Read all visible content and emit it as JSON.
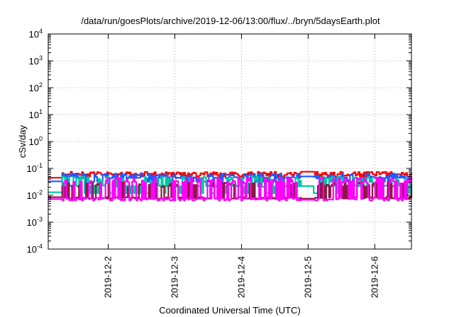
{
  "chart_data": {
    "type": "line",
    "title": "/data/run/goesPlots/archive/2019-12-06/13:00/flux/../bryn/5daysEarth.plot",
    "xlabel": "Coordinated Universal Time (UTC)",
    "ylabel": "cSv/day",
    "yscale": "log",
    "ylim": [
      0.0001,
      10000
    ],
    "y_ticks": [
      {
        "value": 0.0001,
        "base": "10",
        "exp": "-4"
      },
      {
        "value": 0.001,
        "base": "10",
        "exp": "-3"
      },
      {
        "value": 0.01,
        "base": "10",
        "exp": "-2"
      },
      {
        "value": 0.1,
        "base": "10",
        "exp": "-1"
      },
      {
        "value": 1,
        "base": "10",
        "exp": "0"
      },
      {
        "value": 10,
        "base": "10",
        "exp": "1"
      },
      {
        "value": 100,
        "base": "10",
        "exp": "2"
      },
      {
        "value": 1000,
        "base": "10",
        "exp": "3"
      },
      {
        "value": 10000,
        "base": "10",
        "exp": "4"
      }
    ],
    "xlim": [
      1.1,
      6.55
    ],
    "x_ticks": [
      {
        "value": 2,
        "label": "2019-12-2"
      },
      {
        "value": 3,
        "label": "2019-12-3"
      },
      {
        "value": 4,
        "label": "2019-12-4"
      },
      {
        "value": 5,
        "label": "2019-12-5"
      },
      {
        "value": 6,
        "label": "2019-12-6"
      }
    ],
    "grid": true,
    "series": [
      {
        "color": "#ff0000",
        "base": 0.058,
        "low": 0.05,
        "high": 0.075,
        "seed": 11,
        "steps": [
          [
            1.1,
            1.3,
            0.045
          ],
          [
            4.88,
            5.08,
            0.075
          ]
        ]
      },
      {
        "color": "#1f5cff",
        "base": 0.045,
        "low": 0.032,
        "high": 0.065,
        "seed": 23,
        "steps": [
          [
            1.1,
            1.3,
            0.033
          ],
          [
            1.65,
            1.75,
            0.022
          ],
          [
            4.88,
            5.08,
            0.05
          ]
        ]
      },
      {
        "color": "#00c8a0",
        "base": 0.022,
        "low": 0.012,
        "high": 0.05,
        "seed": 37,
        "steps": [
          [
            1.1,
            1.3,
            0.013
          ],
          [
            4.88,
            5.08,
            0.022
          ]
        ]
      },
      {
        "color": "#8b1a3a",
        "base": 0.008,
        "low": 0.0075,
        "high": 0.03,
        "seed": 41,
        "steps": [
          [
            1.1,
            1.3,
            0.0085
          ],
          [
            4.88,
            5.08,
            0.0075
          ]
        ]
      },
      {
        "color": "#ff00ff",
        "base": 0.0075,
        "low": 0.0065,
        "high": 0.045,
        "seed": 53,
        "steps": [
          [
            1.1,
            1.3,
            0.0072
          ],
          [
            4.88,
            5.08,
            0.0068
          ]
        ]
      }
    ]
  }
}
